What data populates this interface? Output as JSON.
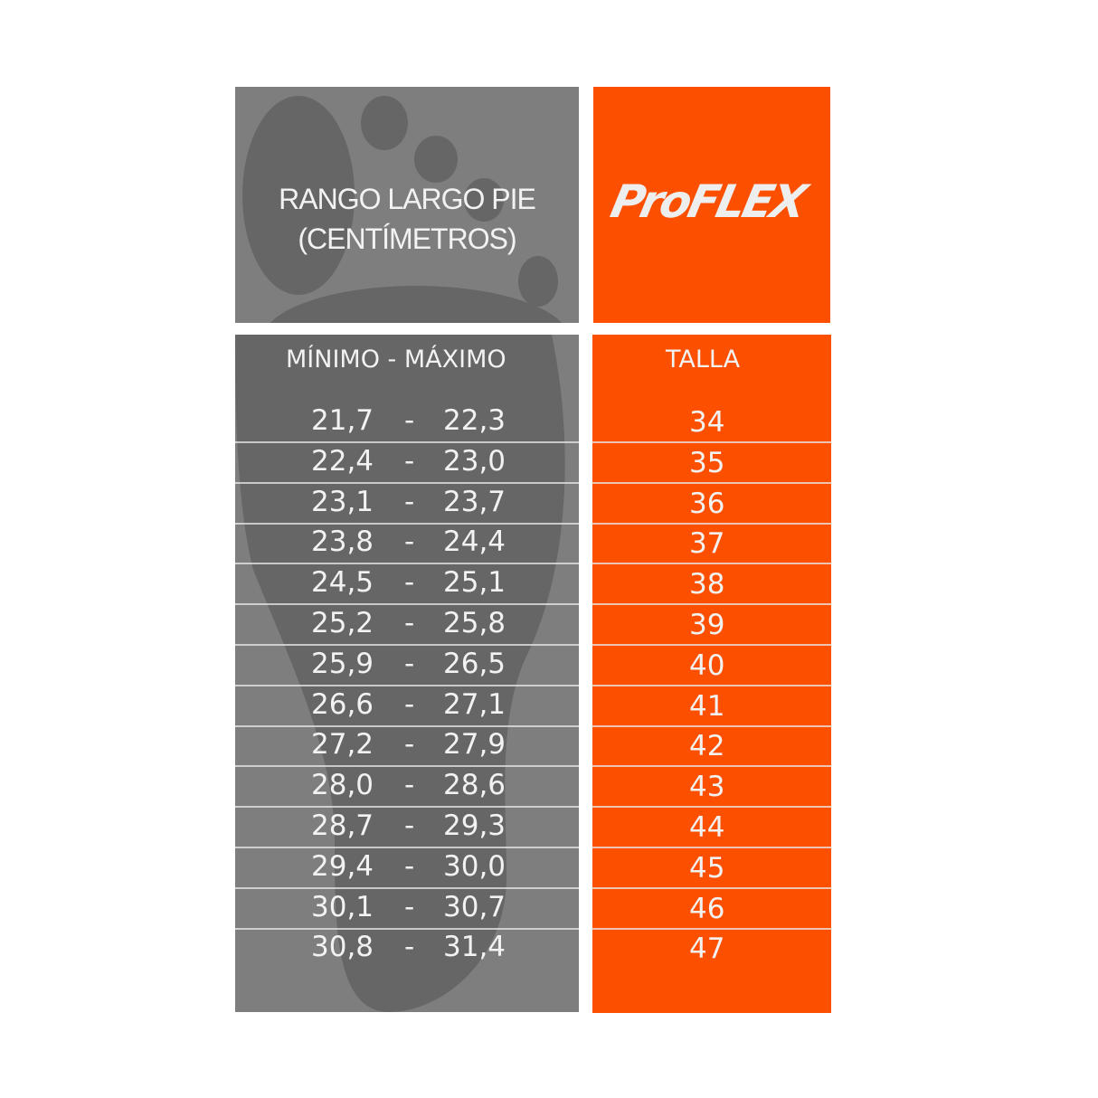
{
  "header": {
    "title_line1": "RANGO LARGO PIE",
    "title_line2": "(CENTÍMETROS)",
    "brand": "ProFLEX"
  },
  "columns": {
    "range": "MÍNIMO  -  MÁXIMO",
    "size": "TALLA"
  },
  "separator": "-",
  "rows": [
    {
      "min": "21,7",
      "max": "22,3",
      "size": "34"
    },
    {
      "min": "22,4",
      "max": "23,0",
      "size": "35"
    },
    {
      "min": "23,1",
      "max": "23,7",
      "size": "36"
    },
    {
      "min": "23,8",
      "max": "24,4",
      "size": "37"
    },
    {
      "min": "24,5",
      "max": "25,1",
      "size": "38"
    },
    {
      "min": "25,2",
      "max": "25,8",
      "size": "39"
    },
    {
      "min": "25,9",
      "max": "26,5",
      "size": "40"
    },
    {
      "min": "26,6",
      "max": "27,1",
      "size": "41"
    },
    {
      "min": "27,2",
      "max": "27,9",
      "size": "42"
    },
    {
      "min": "28,0",
      "max": "28,6",
      "size": "43"
    },
    {
      "min": "28,7",
      "max": "29,3",
      "size": "44"
    },
    {
      "min": "29,4",
      "max": "30,0",
      "size": "45"
    },
    {
      "min": "30,1",
      "max": "30,7",
      "size": "46"
    },
    {
      "min": "30,8",
      "max": "31,4",
      "size": "47"
    }
  ],
  "colors": {
    "gray": "#7e7e7e",
    "foot": "#666666",
    "orange": "#fc5000",
    "text": "#f2f2f2"
  }
}
